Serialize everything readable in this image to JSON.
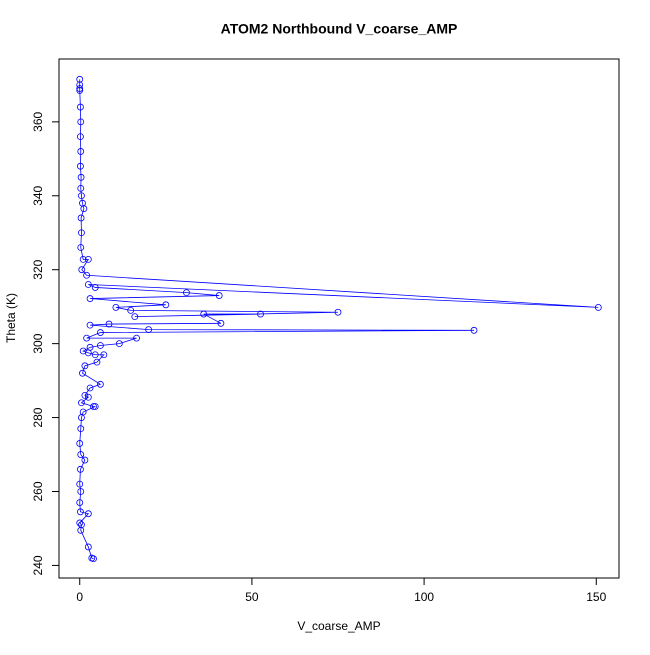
{
  "chart_data": {
    "type": "line",
    "title": "ATOM2 Northbound V_coarse_AMP",
    "x_label": "V_coarse_AMP",
    "y_label": "Theta (K)",
    "xlim": [
      -6.02,
      156.6
    ],
    "ylim": [
      236.6,
      377.0
    ],
    "xticks": [
      0,
      50,
      100,
      150
    ],
    "yticks": [
      240,
      260,
      280,
      300,
      320,
      340,
      360
    ],
    "series": [
      {
        "color": "#0000ff",
        "x": [
          0,
          0,
          0,
          0,
          0.2,
          0.3,
          0.2,
          0.3,
          0.2,
          0.4,
          0.3,
          0.5,
          0.8,
          1.2,
          0.4,
          0.5,
          0.3,
          1,
          2.5,
          0.6,
          2,
          150.6,
          2.5,
          4.5,
          31,
          40.5,
          3,
          25,
          10.5,
          14.8,
          75,
          16,
          52.5,
          36,
          41,
          8.5,
          3,
          20,
          114.5,
          6,
          2,
          16.5,
          11.5,
          6,
          3,
          1,
          2.5,
          4.5,
          7,
          5,
          1.5,
          0.8,
          6,
          3,
          1.5,
          2.5,
          0.5,
          4,
          4.5,
          1,
          0.5,
          0.3,
          0,
          0.3,
          1.5,
          0.2,
          0,
          0.3,
          0,
          0.2,
          2.5,
          0,
          0.5,
          0.3,
          2.5,
          3.5,
          4
        ],
        "values": [
          371.5,
          370,
          369,
          368.5,
          364,
          360,
          356,
          352,
          348,
          345,
          342,
          340,
          338,
          336.5,
          334,
          330,
          326,
          322.8,
          322.8,
          320,
          318.5,
          309.8,
          316,
          315.2,
          313.8,
          313,
          312.2,
          310.5,
          309.8,
          309,
          308.5,
          307.3,
          308,
          308,
          305.5,
          305.3,
          305,
          303.8,
          303.6,
          303,
          301.5,
          301.5,
          300,
          299.5,
          299,
          298,
          297.5,
          297,
          297,
          295,
          294,
          292,
          289,
          288,
          286,
          285.5,
          284,
          283,
          283,
          281.5,
          280,
          277,
          273,
          270,
          268.5,
          266,
          262,
          260,
          257,
          254.5,
          254,
          251.5,
          251,
          249.5,
          245,
          242,
          241.8
        ]
      }
    ]
  }
}
